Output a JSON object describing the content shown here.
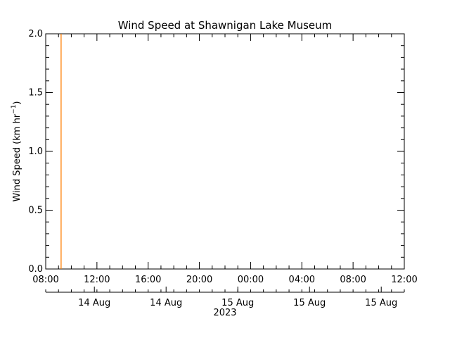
{
  "colors": {
    "series": "#ff7f00",
    "axis": "#000000",
    "background": "#ffffff"
  },
  "chart_data": {
    "type": "line",
    "title": "Wind Speed at Shawnigan Lake Museum",
    "ylabel_main": "Wind Speed (km hr",
    "ylabel_sup": "−1",
    "ylabel_close": ")",
    "xlabel": "2023",
    "ylim": [
      0.0,
      2.0
    ],
    "yticks": [
      "0.0",
      "0.5",
      "1.0",
      "1.5",
      "2.0"
    ],
    "xrange_hours": [
      8,
      36
    ],
    "xticks_time": [
      "08:00",
      "12:00",
      "16:00",
      "20:00",
      "00:00",
      "04:00",
      "08:00",
      "12:00"
    ],
    "xticks_date": [
      "14 Aug",
      "14 Aug",
      "15 Aug",
      "15 Aug",
      "15 Aug"
    ],
    "series": [
      {
        "x_hours": [
          9.2,
          9.2,
          9.2,
          9.2,
          9.2
        ],
        "values": [
          0.0,
          2.0,
          0.0,
          0.1,
          0.0
        ]
      }
    ],
    "grid": false
  }
}
